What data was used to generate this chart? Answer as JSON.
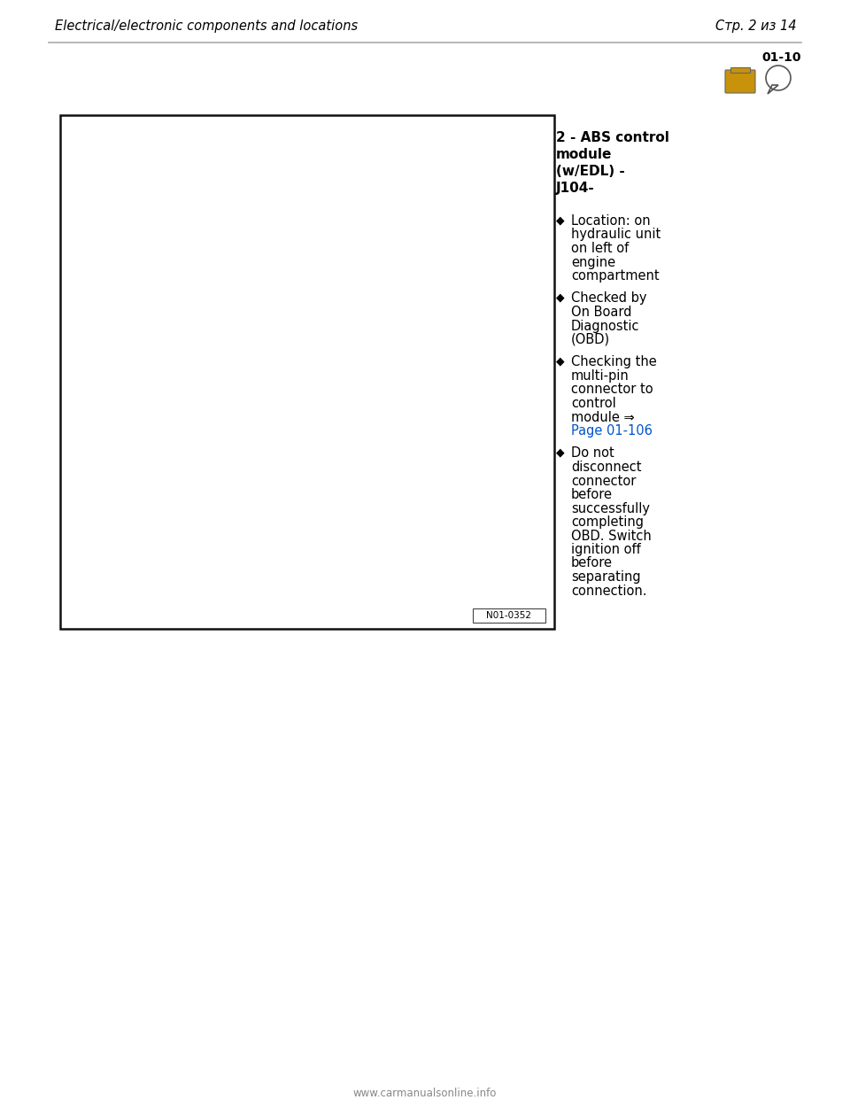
{
  "page_title_left": "Electrical/electronic components and locations",
  "page_title_right": "Стр. 2 из 14",
  "section_number": "01-10",
  "bg_color": "#ffffff",
  "header_line_color": "#aaaaaa",
  "component_title_line1": "2 - ABS control",
  "component_title_line2": "module",
  "component_title_line3": "(w/EDL) -",
  "component_title_line4": "J104-",
  "bullet_items": [
    [
      "Location: on",
      "hydraulic unit",
      "on left of",
      "engine",
      "compartment"
    ],
    [
      "Checked by",
      "On Board",
      "Diagnostic",
      "(OBD)"
    ],
    [
      "Checking the",
      "multi-pin",
      "connector to",
      "control",
      "module ⇒"
    ],
    [
      "Do not",
      "disconnect",
      "connector",
      "before",
      "successfully",
      "completing",
      "OBD. Switch",
      "ignition off",
      "before",
      "separating",
      "connection."
    ]
  ],
  "link_line": "Page 01-106",
  "link_color": "#0055cc",
  "text_color": "#000000",
  "image_label": "N01-0352",
  "footer_text": "www.carmanualsonline.info",
  "footer_color": "#888888"
}
